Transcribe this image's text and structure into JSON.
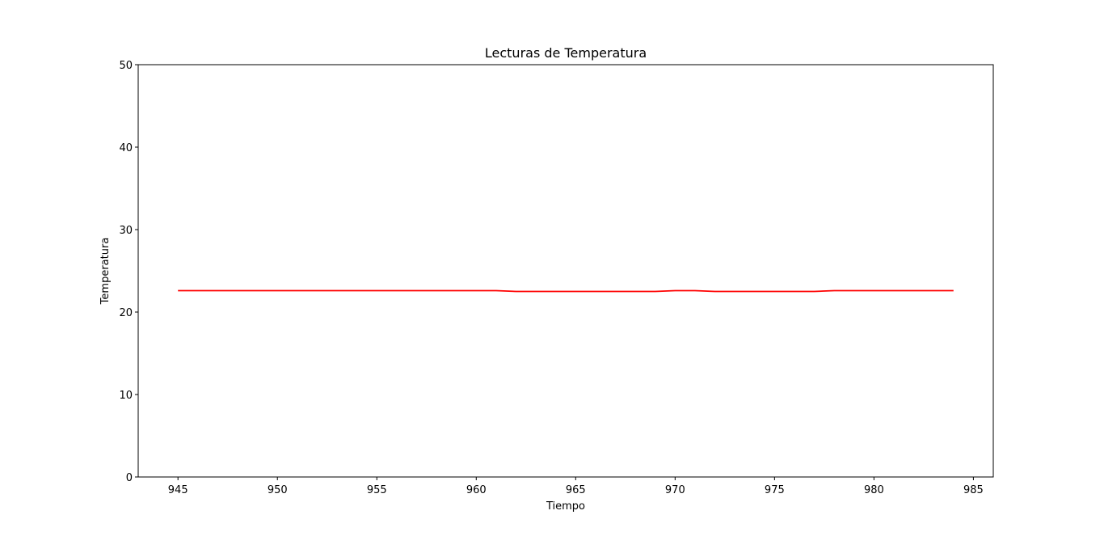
{
  "chart_data": {
    "type": "line",
    "title": "Lecturas de Temperatura",
    "xlabel": "Tiempo",
    "ylabel": "Temperatura",
    "xlim": [
      943.0,
      986.0
    ],
    "ylim": [
      0,
      50
    ],
    "xticks": [
      945,
      950,
      955,
      960,
      965,
      970,
      975,
      980,
      985
    ],
    "yticks": [
      0,
      10,
      20,
      30,
      40,
      50
    ],
    "grid": false,
    "line_color": "#ff0000",
    "series": [
      {
        "x": [
          945,
          946,
          947,
          948,
          949,
          950,
          951,
          952,
          953,
          954,
          955,
          956,
          957,
          958,
          959,
          960,
          961,
          962,
          963,
          964,
          965,
          966,
          967,
          968,
          969,
          970,
          971,
          972,
          973,
          974,
          975,
          976,
          977,
          978,
          979,
          980,
          981,
          982,
          983,
          984
        ],
        "y": [
          22.6,
          22.6,
          22.6,
          22.6,
          22.6,
          22.6,
          22.6,
          22.6,
          22.6,
          22.6,
          22.6,
          22.6,
          22.6,
          22.6,
          22.6,
          22.6,
          22.6,
          22.5,
          22.5,
          22.5,
          22.5,
          22.5,
          22.5,
          22.5,
          22.5,
          22.6,
          22.6,
          22.5,
          22.5,
          22.5,
          22.5,
          22.5,
          22.5,
          22.6,
          22.6,
          22.6,
          22.6,
          22.6,
          22.6,
          22.6
        ]
      }
    ]
  }
}
